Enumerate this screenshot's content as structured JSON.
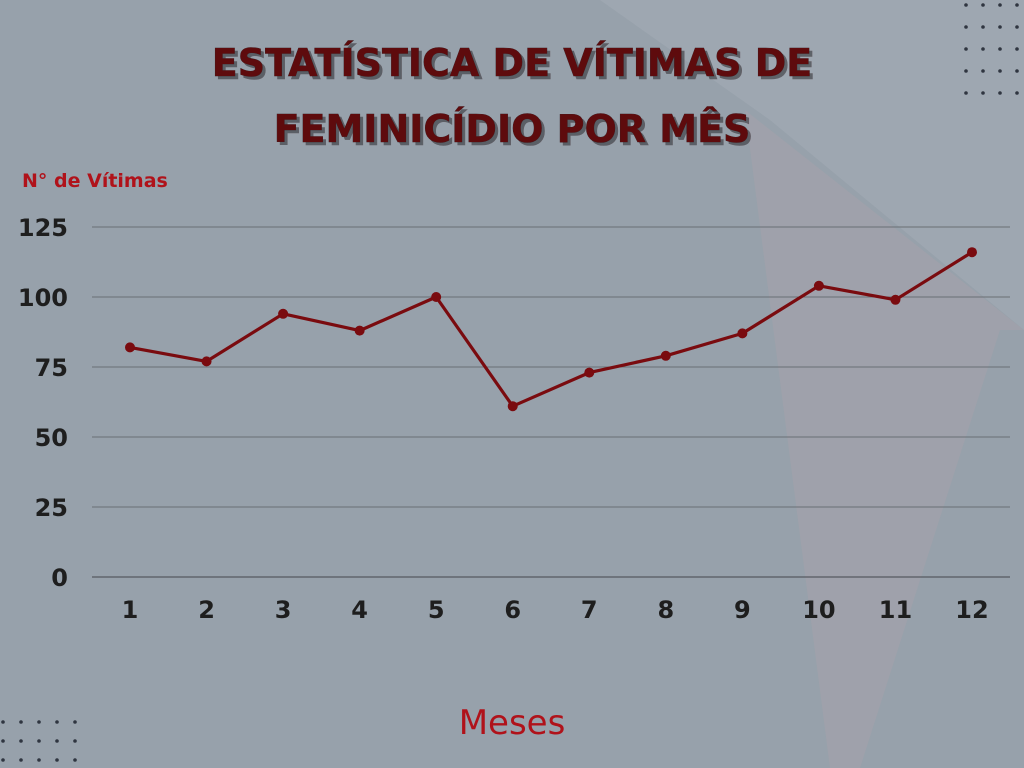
{
  "chart_data": {
    "type": "line",
    "title_lines": [
      "ESTATÍSTICA DE VÍTIMAS DE",
      "FEMINICÍDIO POR MÊS"
    ],
    "ylabel": "N° de Vítimas",
    "xlabel": "Meses",
    "categories": [
      "1",
      "2",
      "3",
      "4",
      "5",
      "6",
      "7",
      "8",
      "9",
      "10",
      "11",
      "12"
    ],
    "series": [
      {
        "values": [
          82,
          77,
          94,
          88,
          100,
          61,
          73,
          79,
          87,
          104,
          99,
          116
        ]
      }
    ],
    "yticks": [
      0,
      25,
      50,
      75,
      100,
      125
    ],
    "ylim": [
      0,
      125
    ],
    "grid": true,
    "line_color": "#7a0b0f",
    "title_color": "#5e0b0d",
    "label_color": "#b0121a",
    "background_color": "#97a1ab"
  }
}
